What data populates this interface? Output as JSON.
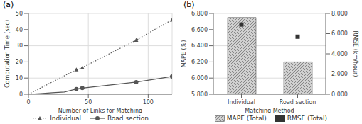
{
  "chart_data": [
    {
      "type": "line",
      "title": "(a)",
      "x_label": "Number of Links for Matching",
      "y_label": "Computation Time (sec)",
      "x": [
        0,
        10,
        20,
        30,
        40,
        45,
        90,
        110,
        120
      ],
      "series": [
        {
          "name": "Individual",
          "color": "#555555",
          "line_style": "dotted",
          "marker": "triangle",
          "values": [
            0,
            3.8,
            7.6,
            11.4,
            15.2,
            16.5,
            33.5,
            42.0,
            46.0
          ],
          "marker_x": [
            40,
            45,
            90,
            120
          ],
          "marker_values": [
            15.2,
            16.5,
            33.5,
            46.0
          ]
        },
        {
          "name": "Road section",
          "color": "#555555",
          "line_style": "solid",
          "marker": "circle",
          "values": [
            0,
            0.4,
            0.9,
            1.4,
            3.2,
            3.8,
            7.5,
            9.8,
            11.0
          ],
          "marker_x": [
            40,
            45,
            90,
            120
          ],
          "marker_values": [
            3.2,
            3.8,
            7.5,
            11.0
          ]
        }
      ],
      "xlim": [
        0,
        120
      ],
      "ylim": [
        0,
        50
      ],
      "xticks": [
        0,
        50,
        100
      ],
      "yticks": [
        0,
        10,
        20,
        30,
        40,
        50
      ],
      "grid": true,
      "legend": "bottom"
    },
    {
      "type": "bar",
      "title": "(b)",
      "x_label": "Matching Method",
      "y_label": "MAPE (%)",
      "y2_label": "RMSE (km/hour)",
      "categories": [
        "Individual",
        "Road section"
      ],
      "series": [
        {
          "name": "MAPE (Total)",
          "type": "bar",
          "color": "#d0d0d0",
          "bottom": 5.8,
          "values": [
            6.75,
            6.2
          ]
        },
        {
          "name": "RMSE (Total)",
          "type": "scatter",
          "marker": "square",
          "axis": "y2",
          "color": "#333333",
          "values": [
            6.9,
            5.7
          ]
        }
      ],
      "ylim": [
        5.8,
        6.8
      ],
      "yticks": [
        {
          "value": 5.8,
          "label": "5.800"
        },
        {
          "value": 6.0,
          "label": "6.000"
        },
        {
          "value": 6.2,
          "label": "6.200"
        },
        {
          "value": 6.4,
          "label": "6.400"
        },
        {
          "value": 6.6,
          "label": "6.600"
        },
        {
          "value": 6.8,
          "label": "6.800"
        }
      ],
      "y2lim": [
        0,
        8
      ],
      "y2ticks": [
        {
          "value": 0,
          "label": "0.000"
        },
        {
          "value": 2,
          "label": "2.000"
        },
        {
          "value": 4,
          "label": "4.000"
        },
        {
          "value": 6,
          "label": "6.000"
        },
        {
          "value": 8,
          "label": "8.000"
        }
      ],
      "grid": "y",
      "legend": "bottom"
    }
  ]
}
